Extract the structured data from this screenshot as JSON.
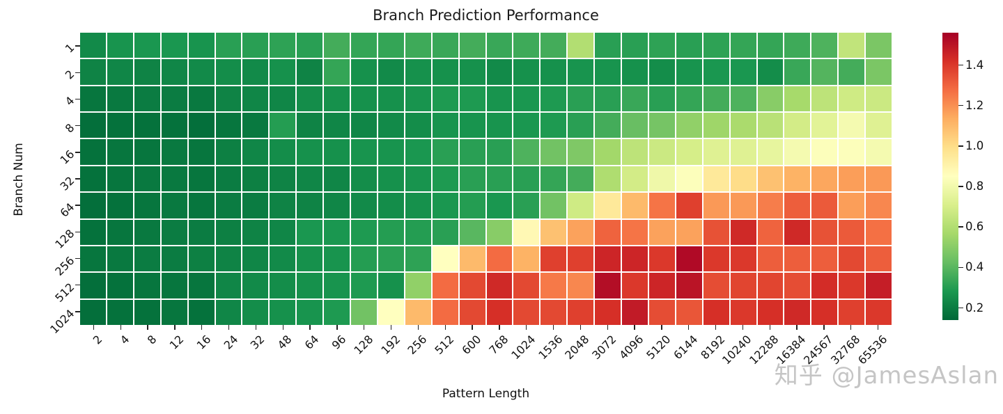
{
  "page": {
    "background": "#ffffff"
  },
  "watermark": {
    "text": "知乎 @JamesAslan",
    "color": "#c5c5c5"
  },
  "chart_data": {
    "type": "heatmap",
    "title": "Branch Prediction Performance",
    "xlabel": "Pattern Length",
    "ylabel": "Branch Num",
    "x_categories": [
      "2",
      "4",
      "8",
      "12",
      "16",
      "24",
      "32",
      "48",
      "64",
      "96",
      "128",
      "192",
      "256",
      "512",
      "600",
      "768",
      "1024",
      "1536",
      "2048",
      "3072",
      "4096",
      "5120",
      "6144",
      "8192",
      "10240",
      "12288",
      "16384",
      "24567",
      "32768",
      "65536"
    ],
    "y_categories": [
      "1",
      "2",
      "4",
      "8",
      "16",
      "32",
      "64",
      "128",
      "256",
      "512",
      "1024"
    ],
    "values": [
      [
        0.24,
        0.27,
        0.28,
        0.28,
        0.27,
        0.31,
        0.31,
        0.32,
        0.31,
        0.36,
        0.33,
        0.33,
        0.35,
        0.34,
        0.36,
        0.34,
        0.35,
        0.36,
        0.6,
        0.31,
        0.31,
        0.32,
        0.31,
        0.32,
        0.33,
        0.33,
        0.35,
        0.38,
        0.64,
        0.47
      ],
      [
        0.22,
        0.23,
        0.22,
        0.23,
        0.24,
        0.25,
        0.24,
        0.26,
        0.22,
        0.33,
        0.26,
        0.24,
        0.26,
        0.26,
        0.26,
        0.24,
        0.26,
        0.26,
        0.27,
        0.27,
        0.26,
        0.25,
        0.27,
        0.28,
        0.28,
        0.25,
        0.34,
        0.39,
        0.36,
        0.47
      ],
      [
        0.18,
        0.19,
        0.2,
        0.2,
        0.19,
        0.22,
        0.23,
        0.23,
        0.25,
        0.26,
        0.26,
        0.26,
        0.27,
        0.29,
        0.29,
        0.27,
        0.28,
        0.29,
        0.31,
        0.31,
        0.34,
        0.31,
        0.33,
        0.36,
        0.38,
        0.5,
        0.57,
        0.63,
        0.68,
        0.67
      ],
      [
        0.16,
        0.17,
        0.17,
        0.17,
        0.16,
        0.18,
        0.19,
        0.3,
        0.22,
        0.23,
        0.23,
        0.24,
        0.25,
        0.27,
        0.27,
        0.27,
        0.28,
        0.29,
        0.31,
        0.36,
        0.43,
        0.46,
        0.52,
        0.55,
        0.58,
        0.62,
        0.69,
        0.74,
        0.81,
        0.73
      ],
      [
        0.17,
        0.18,
        0.18,
        0.19,
        0.18,
        0.21,
        0.23,
        0.25,
        0.26,
        0.26,
        0.27,
        0.27,
        0.28,
        0.31,
        0.31,
        0.31,
        0.38,
        0.45,
        0.48,
        0.56,
        0.63,
        0.67,
        0.7,
        0.73,
        0.73,
        0.76,
        0.81,
        0.84,
        0.84,
        0.81
      ],
      [
        0.17,
        0.18,
        0.19,
        0.19,
        0.18,
        0.2,
        0.21,
        0.22,
        0.23,
        0.23,
        0.25,
        0.26,
        0.27,
        0.29,
        0.31,
        0.31,
        0.31,
        0.33,
        0.36,
        0.59,
        0.69,
        0.79,
        0.84,
        0.95,
        1.0,
        1.08,
        1.12,
        1.15,
        1.17,
        1.18
      ],
      [
        0.16,
        0.17,
        0.18,
        0.19,
        0.18,
        0.2,
        0.2,
        0.22,
        0.22,
        0.23,
        0.24,
        0.25,
        0.26,
        0.28,
        0.3,
        0.28,
        0.31,
        0.45,
        0.68,
        0.95,
        1.1,
        1.26,
        1.38,
        1.18,
        1.18,
        1.24,
        1.31,
        1.32,
        1.17,
        1.22
      ],
      [
        0.17,
        0.18,
        0.19,
        0.2,
        0.2,
        0.21,
        0.22,
        0.23,
        0.28,
        0.28,
        0.29,
        0.3,
        0.3,
        0.31,
        0.4,
        0.5,
        0.88,
        1.08,
        1.16,
        1.3,
        1.26,
        1.16,
        1.16,
        1.34,
        1.44,
        1.3,
        1.44,
        1.34,
        1.32,
        1.27
      ],
      [
        0.18,
        0.19,
        0.2,
        0.2,
        0.21,
        0.22,
        0.23,
        0.24,
        0.26,
        0.27,
        0.3,
        0.31,
        0.32,
        0.85,
        1.1,
        1.28,
        1.12,
        1.38,
        1.38,
        1.45,
        1.45,
        1.4,
        1.53,
        1.4,
        1.4,
        1.31,
        1.31,
        1.31,
        1.36,
        1.31
      ],
      [
        0.16,
        0.17,
        0.18,
        0.18,
        0.18,
        0.23,
        0.24,
        0.25,
        0.26,
        0.27,
        0.29,
        0.26,
        0.52,
        1.28,
        1.36,
        1.44,
        1.36,
        1.25,
        1.22,
        1.52,
        1.4,
        1.45,
        1.5,
        1.35,
        1.37,
        1.37,
        1.35,
        1.43,
        1.4,
        1.47
      ],
      [
        0.16,
        0.17,
        0.17,
        0.18,
        0.17,
        0.23,
        0.25,
        0.26,
        0.27,
        0.29,
        0.45,
        0.85,
        1.1,
        1.28,
        1.36,
        1.42,
        1.36,
        1.36,
        1.38,
        1.42,
        1.48,
        1.35,
        1.33,
        1.42,
        1.4,
        1.42,
        1.44,
        1.42,
        1.38,
        1.4
      ]
    ],
    "colormap": "RdYlGn_r",
    "colormap_anchors": [
      "#006837",
      "#1a9850",
      "#66bd63",
      "#a6d96a",
      "#d9ef8b",
      "#ffffbf",
      "#fee08b",
      "#fdae61",
      "#f46d43",
      "#d73027",
      "#a50026"
    ],
    "vmin": 0.14,
    "vmax": 1.56,
    "grid_line_color": "#ffffff",
    "tick_label_rotation_deg": 45,
    "colorbar": {
      "position": "right",
      "ticks": [
        "0.2",
        "0.4",
        "0.6",
        "0.8",
        "1.0",
        "1.2",
        "1.4"
      ],
      "tick_values": [
        0.2,
        0.4,
        0.6,
        0.8,
        1.0,
        1.2,
        1.4
      ]
    }
  }
}
